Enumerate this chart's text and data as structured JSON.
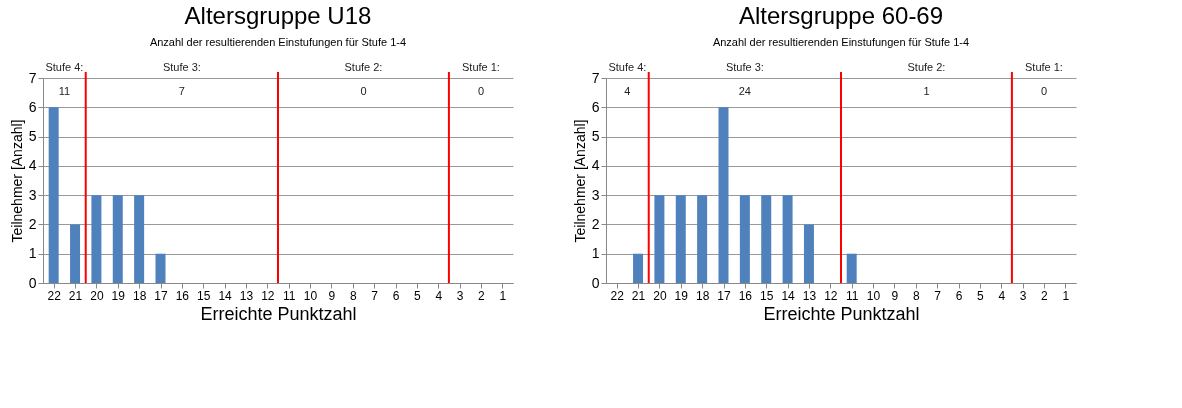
{
  "chart_data": [
    {
      "type": "bar",
      "title": "Altersgruppe U18",
      "subtitle": "Anzahl der resultierenden Einstufungen für Stufe 1-4",
      "xlabel": "Erreichte Punktzahl",
      "ylabel": "Teilnehmer [Anzahl]",
      "x": [
        22,
        21,
        20,
        19,
        18,
        17,
        16,
        15,
        14,
        13,
        12,
        11,
        10,
        9,
        8,
        7,
        6,
        5,
        4,
        3,
        2,
        1
      ],
      "series": [
        {
          "color": "#4f81bd",
          "values": [
            6,
            2,
            3,
            3,
            3,
            1,
            0,
            0,
            0,
            0,
            0,
            0,
            0,
            0,
            0,
            0,
            0,
            0,
            0,
            0,
            0,
            0
          ]
        }
      ],
      "xlim": [
        22.5,
        0.5
      ],
      "xticks": [
        22,
        21,
        20,
        19,
        18,
        17,
        16,
        15,
        14,
        13,
        12,
        11,
        10,
        9,
        8,
        7,
        6,
        5,
        4,
        3,
        2,
        1
      ],
      "ylim": [
        0,
        7
      ],
      "yticks": [
        0,
        1,
        2,
        3,
        4,
        5,
        6,
        7
      ],
      "grid": "y",
      "ref_lines": [
        {
          "axis": "x",
          "value": 20.5,
          "color": "#ff0000"
        },
        {
          "axis": "x",
          "value": 11.5,
          "color": "#ff0000"
        },
        {
          "axis": "x",
          "value": 3.5,
          "color": "#ff0000"
        }
      ],
      "annotations": [
        "Stufe 4:",
        "Stufe 3:",
        "Stufe 2:",
        "Stufe 1:",
        "11",
        "7",
        "0",
        "0"
      ]
    },
    {
      "type": "bar",
      "title": "Altersgruppe 60-69",
      "subtitle": "Anzahl der resultierenden Einstufungen für Stufe 1-4",
      "xlabel": "Erreichte Punktzahl",
      "ylabel": "Teilnehmer [Anzahl]",
      "x": [
        22,
        21,
        20,
        19,
        18,
        17,
        16,
        15,
        14,
        13,
        12,
        11,
        10,
        9,
        8,
        7,
        6,
        5,
        4,
        3,
        2,
        1
      ],
      "series": [
        {
          "color": "#4f81bd",
          "values": [
            0,
            1,
            3,
            3,
            3,
            6,
            3,
            3,
            3,
            2,
            0,
            1,
            0,
            0,
            0,
            0,
            0,
            0,
            0,
            0,
            0,
            0
          ]
        }
      ],
      "xlim": [
        22.5,
        0.5
      ],
      "xticks": [
        22,
        21,
        20,
        19,
        18,
        17,
        16,
        15,
        14,
        13,
        12,
        11,
        10,
        9,
        8,
        7,
        6,
        5,
        4,
        3,
        2,
        1
      ],
      "ylim": [
        0,
        7
      ],
      "yticks": [
        0,
        1,
        2,
        3,
        4,
        5,
        6,
        7
      ],
      "grid": "y",
      "ref_lines": [
        {
          "axis": "x",
          "value": 20.5,
          "color": "#ff0000"
        },
        {
          "axis": "x",
          "value": 11.5,
          "color": "#ff0000"
        },
        {
          "axis": "x",
          "value": 3.5,
          "color": "#ff0000"
        }
      ],
      "annotations": [
        "Stufe 4:",
        "Stufe 3:",
        "Stufe 2:",
        "Stufe 1:",
        "4",
        "24",
        "1",
        "0"
      ]
    }
  ]
}
